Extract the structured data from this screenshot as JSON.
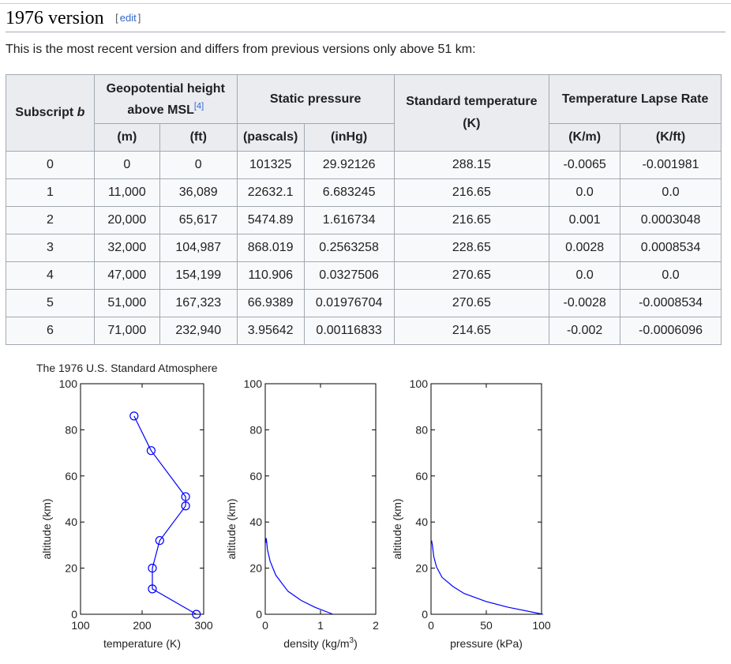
{
  "section": {
    "title": "1976 version",
    "edit_open": "[",
    "edit_label": "edit",
    "edit_close": "]"
  },
  "intro": "This is the most recent version and differs from previous versions only above 51 km:",
  "table": {
    "h_subscript": "Subscript",
    "h_subscript_var": "b",
    "h_height": "Geopotential height above MSL",
    "h_height_ref": "[4]",
    "h_pressure": "Static pressure",
    "h_temperature": "Standard temperature (K)",
    "h_lapse": "Temperature Lapse Rate",
    "u_m": "(m)",
    "u_ft": "(ft)",
    "u_pa": "(pascals)",
    "u_inhg": "(inHg)",
    "u_km": "(K/m)",
    "u_kft": "(K/ft)",
    "rows": [
      [
        "0",
        "0",
        "0",
        "101325",
        "29.92126",
        "288.15",
        "-0.0065",
        "-0.001981"
      ],
      [
        "1",
        "11,000",
        "36,089",
        "22632.1",
        "6.683245",
        "216.65",
        "0.0",
        "0.0"
      ],
      [
        "2",
        "20,000",
        "65,617",
        "5474.89",
        "1.616734",
        "216.65",
        "0.001",
        "0.0003048"
      ],
      [
        "3",
        "32,000",
        "104,987",
        "868.019",
        "0.2563258",
        "228.65",
        "0.0028",
        "0.0008534"
      ],
      [
        "4",
        "47,000",
        "154,199",
        "110.906",
        "0.0327506",
        "270.65",
        "0.0",
        "0.0"
      ],
      [
        "5",
        "51,000",
        "167,323",
        "66.9389",
        "0.01976704",
        "270.65",
        "-0.0028",
        "-0.0008534"
      ],
      [
        "6",
        "71,000",
        "232,940",
        "3.95642",
        "0.00116833",
        "214.65",
        "-0.002",
        "-0.0006096"
      ]
    ]
  },
  "chart_data": [
    {
      "type": "line",
      "title": "The 1976 U.S. Standard Atmosphere",
      "xlabel": "temperature (K)",
      "ylabel": "altitude (km)",
      "xlim": [
        100,
        300
      ],
      "ylim": [
        0,
        100
      ],
      "xticks": [
        100,
        200,
        300
      ],
      "yticks": [
        0,
        20,
        40,
        60,
        80,
        100
      ],
      "color": "#0000ff",
      "markers": "circle",
      "x": [
        288.15,
        216.65,
        216.65,
        228.65,
        270.65,
        270.65,
        214.65,
        186.95
      ],
      "y": [
        0,
        11,
        20,
        32,
        47,
        51,
        71,
        86
      ]
    },
    {
      "type": "line",
      "xlabel": "density (kg/m",
      "xlabel_sup": "3",
      "xlabel_end": ")",
      "ylabel": "altitude (km)",
      "xlim": [
        0,
        2
      ],
      "ylim": [
        0,
        100
      ],
      "xticks": [
        0,
        1,
        2
      ],
      "yticks": [
        0,
        20,
        40,
        60,
        80,
        100
      ],
      "color": "#0000ff",
      "x": [
        1.225,
        0.9,
        0.65,
        0.41,
        0.19,
        0.088,
        0.04,
        0.018,
        0.008
      ],
      "y": [
        0,
        3,
        6,
        10,
        17,
        23,
        28,
        33,
        31
      ]
    },
    {
      "type": "line",
      "xlabel": "pressure (kPa)",
      "ylabel": "altitude (km)",
      "xlim": [
        0,
        100
      ],
      "ylim": [
        0,
        100
      ],
      "xticks": [
        0,
        50,
        100
      ],
      "yticks": [
        0,
        20,
        40,
        60,
        80,
        100
      ],
      "color": "#0000ff",
      "x": [
        101.3,
        70,
        50,
        30,
        20,
        10,
        5,
        2.5,
        1.2,
        0.5
      ],
      "y": [
        0,
        3,
        5.5,
        9,
        12,
        16,
        20.5,
        25,
        30,
        32
      ]
    }
  ]
}
